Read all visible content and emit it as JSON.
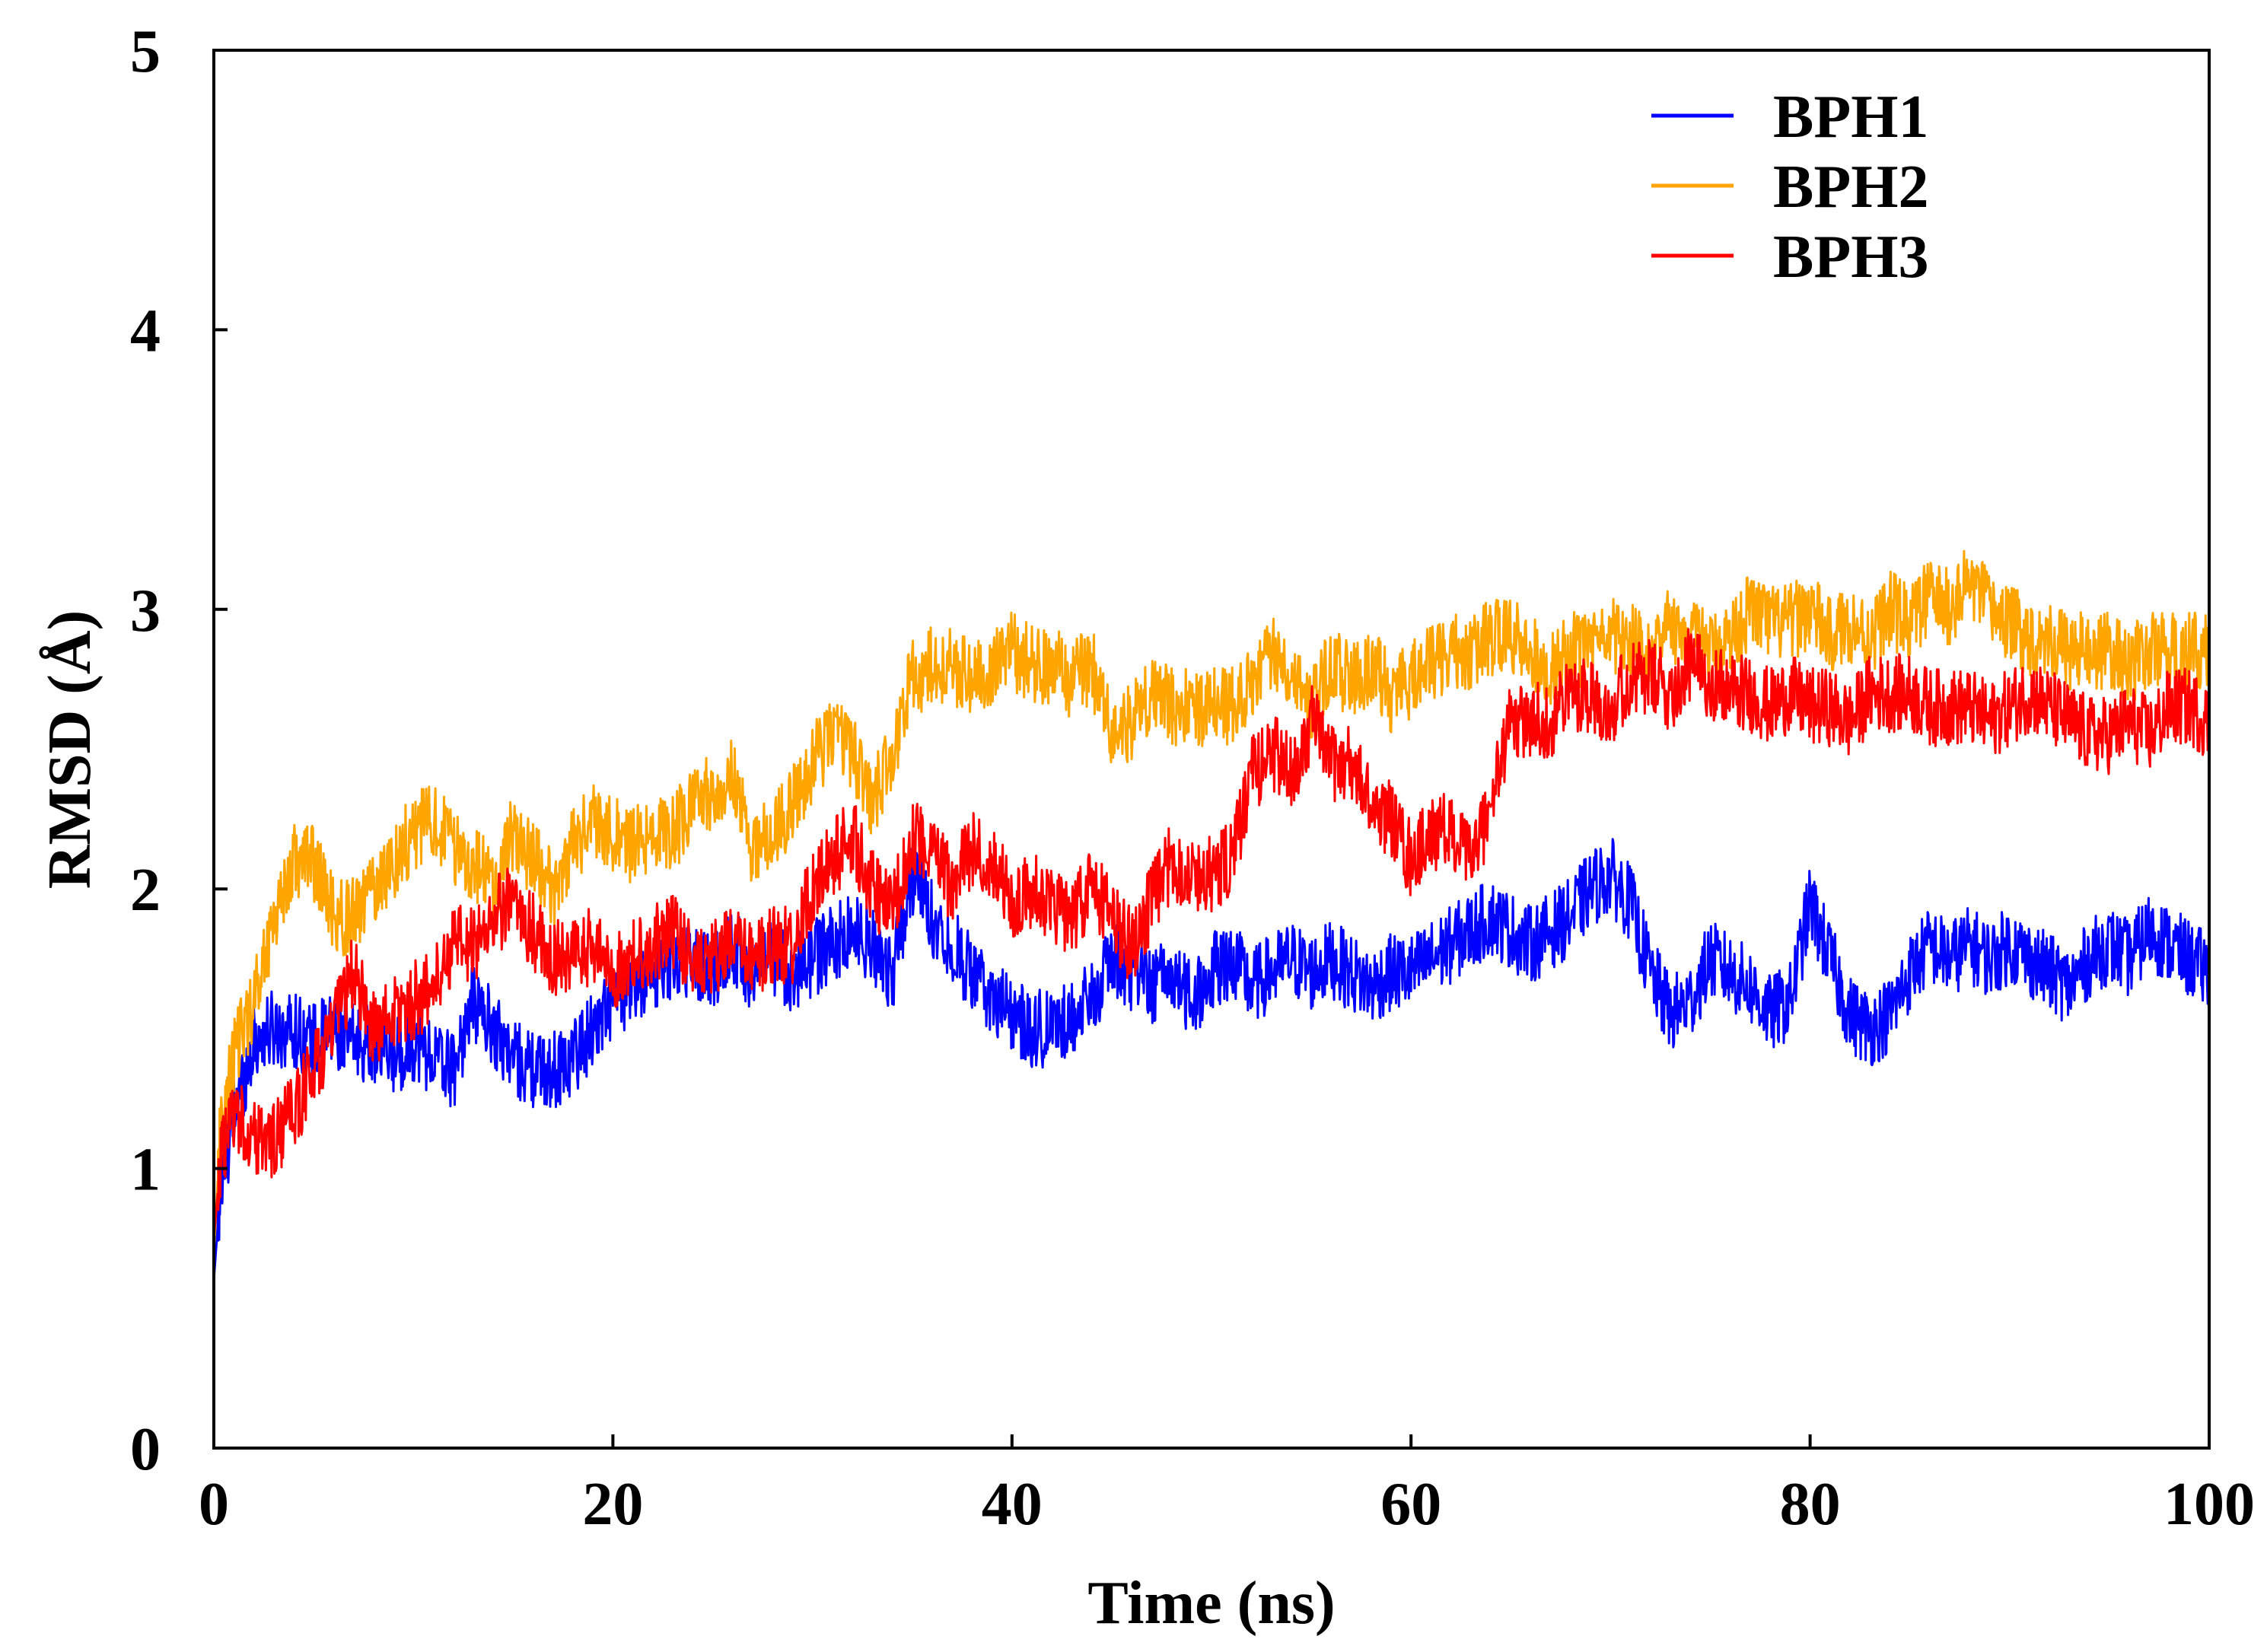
{
  "chart_data": {
    "type": "line",
    "title": "",
    "xlabel": "Time (ns)",
    "ylabel": "RMSD (Å)",
    "xlim": [
      0,
      100
    ],
    "ylim": [
      0,
      5
    ],
    "xticks": [
      0,
      20,
      40,
      60,
      80,
      100
    ],
    "yticks": [
      0,
      1,
      2,
      3,
      4,
      5
    ],
    "grid": false,
    "legend_position": "top-right",
    "x": [
      0,
      0.3,
      1,
      2,
      3,
      4,
      5,
      6,
      7,
      8,
      9,
      10,
      11,
      12,
      13,
      14,
      15,
      16,
      17,
      18,
      19,
      20,
      21,
      22,
      23,
      24,
      25,
      26,
      27,
      28,
      29,
      30,
      31,
      32,
      33,
      34,
      35,
      36,
      37,
      38,
      39,
      40,
      41,
      42,
      43,
      44,
      45,
      46,
      47,
      48,
      49,
      50,
      51,
      52,
      53,
      54,
      55,
      56,
      57,
      58,
      59,
      60,
      61,
      62,
      63,
      64,
      65,
      66,
      67,
      68,
      69,
      70,
      71,
      72,
      73,
      74,
      75,
      76,
      77,
      78,
      79,
      80,
      81,
      82,
      83,
      84,
      85,
      86,
      87,
      88,
      89,
      90,
      91,
      92,
      93,
      94,
      95,
      96,
      97,
      98,
      99,
      100
    ],
    "series": [
      {
        "name": "BPH1",
        "color": "#0000ff",
        "values": [
          0.6,
          0.9,
          1.2,
          1.45,
          1.5,
          1.5,
          1.45,
          1.5,
          1.45,
          1.45,
          1.4,
          1.45,
          1.4,
          1.35,
          1.6,
          1.5,
          1.4,
          1.35,
          1.35,
          1.4,
          1.5,
          1.6,
          1.65,
          1.7,
          1.75,
          1.75,
          1.7,
          1.8,
          1.7,
          1.75,
          1.7,
          1.75,
          1.8,
          1.85,
          1.8,
          1.7,
          2.05,
          1.9,
          1.8,
          1.7,
          1.6,
          1.55,
          1.5,
          1.5,
          1.55,
          1.6,
          1.75,
          1.7,
          1.65,
          1.7,
          1.6,
          1.7,
          1.75,
          1.65,
          1.7,
          1.75,
          1.7,
          1.75,
          1.7,
          1.65,
          1.7,
          1.7,
          1.75,
          1.8,
          1.85,
          1.9,
          1.85,
          1.8,
          1.85,
          1.9,
          2.0,
          2.05,
          1.95,
          1.7,
          1.55,
          1.6,
          1.75,
          1.7,
          1.65,
          1.55,
          1.6,
          1.95,
          1.75,
          1.55,
          1.5,
          1.55,
          1.7,
          1.8,
          1.75,
          1.8,
          1.75,
          1.8,
          1.75,
          1.7,
          1.65,
          1.75,
          1.8,
          1.75,
          1.85,
          1.8,
          1.75,
          1.7
        ]
      },
      {
        "name": "BPH2",
        "color": "#ffa500",
        "values": [
          0.7,
          1.1,
          1.4,
          1.6,
          1.9,
          2.1,
          2.1,
          1.9,
          1.9,
          2.0,
          2.1,
          2.2,
          2.25,
          2.15,
          2.1,
          2.0,
          2.2,
          2.1,
          2.0,
          2.15,
          2.25,
          2.2,
          2.15,
          2.2,
          2.2,
          2.3,
          2.35,
          2.4,
          2.15,
          2.2,
          2.3,
          2.45,
          2.55,
          2.5,
          2.3,
          2.5,
          2.75,
          2.8,
          2.8,
          2.75,
          2.8,
          2.85,
          2.8,
          2.8,
          2.75,
          2.8,
          2.55,
          2.6,
          2.7,
          2.65,
          2.65,
          2.65,
          2.65,
          2.75,
          2.85,
          2.8,
          2.65,
          2.8,
          2.75,
          2.8,
          2.7,
          2.75,
          2.8,
          2.85,
          2.85,
          2.9,
          2.9,
          2.85,
          2.8,
          2.85,
          2.85,
          2.9,
          2.9,
          2.85,
          2.95,
          2.9,
          2.85,
          2.9,
          3.0,
          2.95,
          2.95,
          3.0,
          2.9,
          2.95,
          2.9,
          3.0,
          2.95,
          3.05,
          3.0,
          3.1,
          3.0,
          2.95,
          2.9,
          2.9,
          2.85,
          2.85,
          2.85,
          2.8,
          2.85,
          2.85,
          2.85,
          2.85
        ]
      },
      {
        "name": "BPH3",
        "color": "#ff0000",
        "values": [
          0.75,
          1.0,
          1.2,
          1.1,
          1.1,
          1.2,
          1.35,
          1.5,
          1.7,
          1.5,
          1.55,
          1.6,
          1.65,
          1.8,
          1.8,
          1.9,
          1.95,
          1.85,
          1.75,
          1.75,
          1.8,
          1.7,
          1.75,
          1.8,
          1.85,
          1.75,
          1.75,
          1.8,
          1.75,
          1.8,
          1.8,
          2.0,
          2.1,
          2.2,
          2.0,
          1.9,
          2.2,
          2.15,
          2.0,
          2.15,
          2.1,
          1.95,
          2.0,
          1.95,
          1.9,
          2.0,
          1.9,
          1.8,
          1.95,
          2.1,
          2.05,
          2.05,
          2.1,
          2.4,
          2.5,
          2.4,
          2.6,
          2.45,
          2.45,
          2.3,
          2.25,
          2.1,
          2.2,
          2.2,
          2.1,
          2.3,
          2.6,
          2.6,
          2.6,
          2.7,
          2.7,
          2.65,
          2.75,
          2.75,
          2.7,
          2.8,
          2.75,
          2.7,
          2.7,
          2.65,
          2.7,
          2.65,
          2.65,
          2.6,
          2.7,
          2.7,
          2.7,
          2.65,
          2.65,
          2.65,
          2.6,
          2.65,
          2.7,
          2.65,
          2.6,
          2.55,
          2.55,
          2.6,
          2.55,
          2.65,
          2.65,
          2.6
        ]
      }
    ]
  }
}
